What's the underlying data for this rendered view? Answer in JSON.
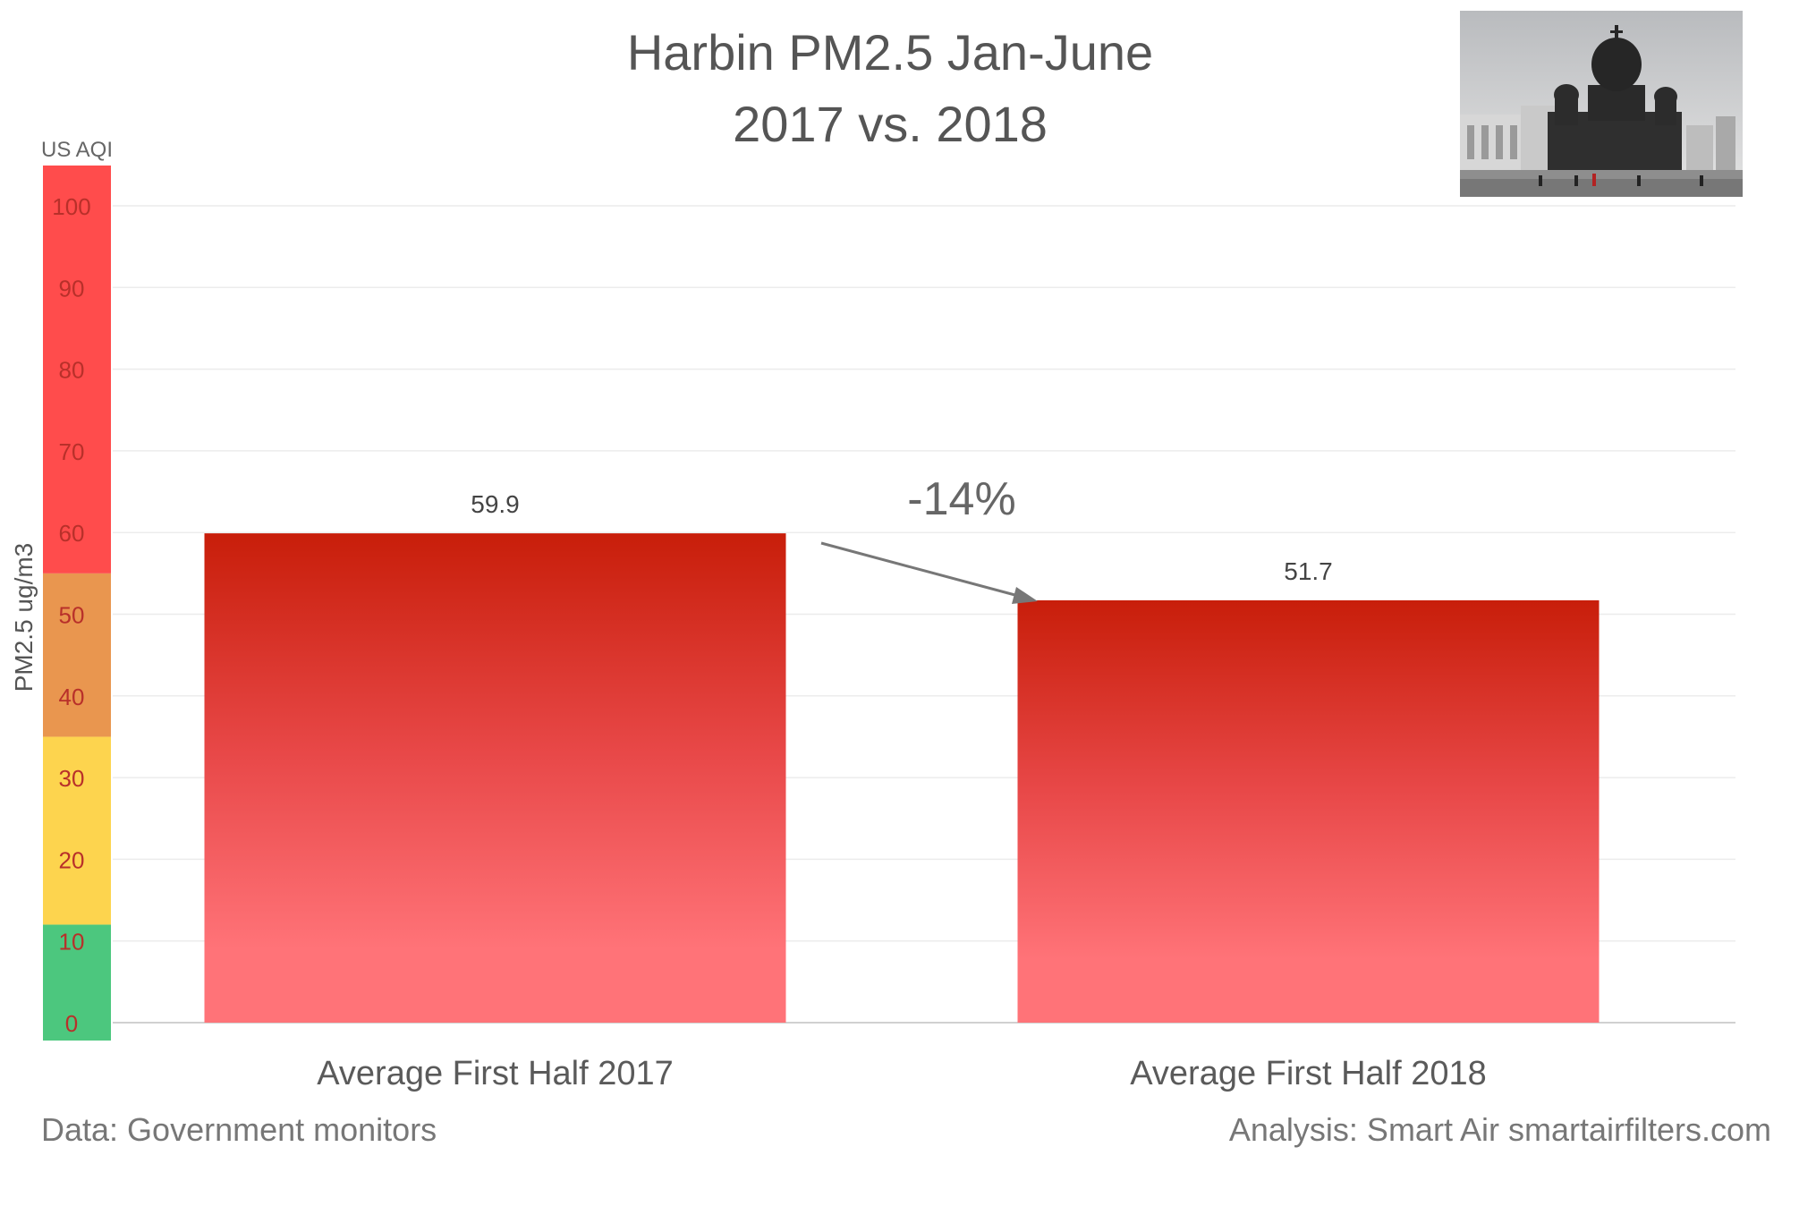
{
  "chart_data": {
    "type": "bar",
    "title": "Harbin PM2.5 Jan-June",
    "subtitle": "2017 vs. 2018",
    "categories": [
      "Average First Half 2017",
      "Average First Half 2018"
    ],
    "values": [
      59.9,
      51.7
    ],
    "data_labels": [
      "59.9",
      "51.7"
    ],
    "ylabel": "PM2.5 ug/m3",
    "ylim": [
      0,
      100
    ],
    "yticks": [
      0,
      10,
      20,
      30,
      40,
      50,
      60,
      70,
      80,
      90,
      100
    ],
    "grid": true,
    "bar_color_top": "#c81e0a",
    "bar_color_bottom": "#ff7378",
    "aqi_band_title": "US AQI",
    "aqi_bands": [
      {
        "from": 0,
        "to": 12,
        "color": "#4cc77e"
      },
      {
        "from": 12,
        "to": 35,
        "color": "#fdd44e"
      },
      {
        "from": 35,
        "to": 55,
        "color": "#e9964f"
      },
      {
        "from": 55,
        "to": 100,
        "color": "#ff4c4c"
      }
    ],
    "annotation": {
      "text": "-14%",
      "from_category": 0,
      "to_category": 1
    }
  },
  "footer": {
    "source": "Data: Government monitors",
    "analysis": "Analysis: Smart Air smartairfilters.com"
  },
  "photo": {
    "subject": "Saint Sophia Cathedral, Harbin"
  }
}
